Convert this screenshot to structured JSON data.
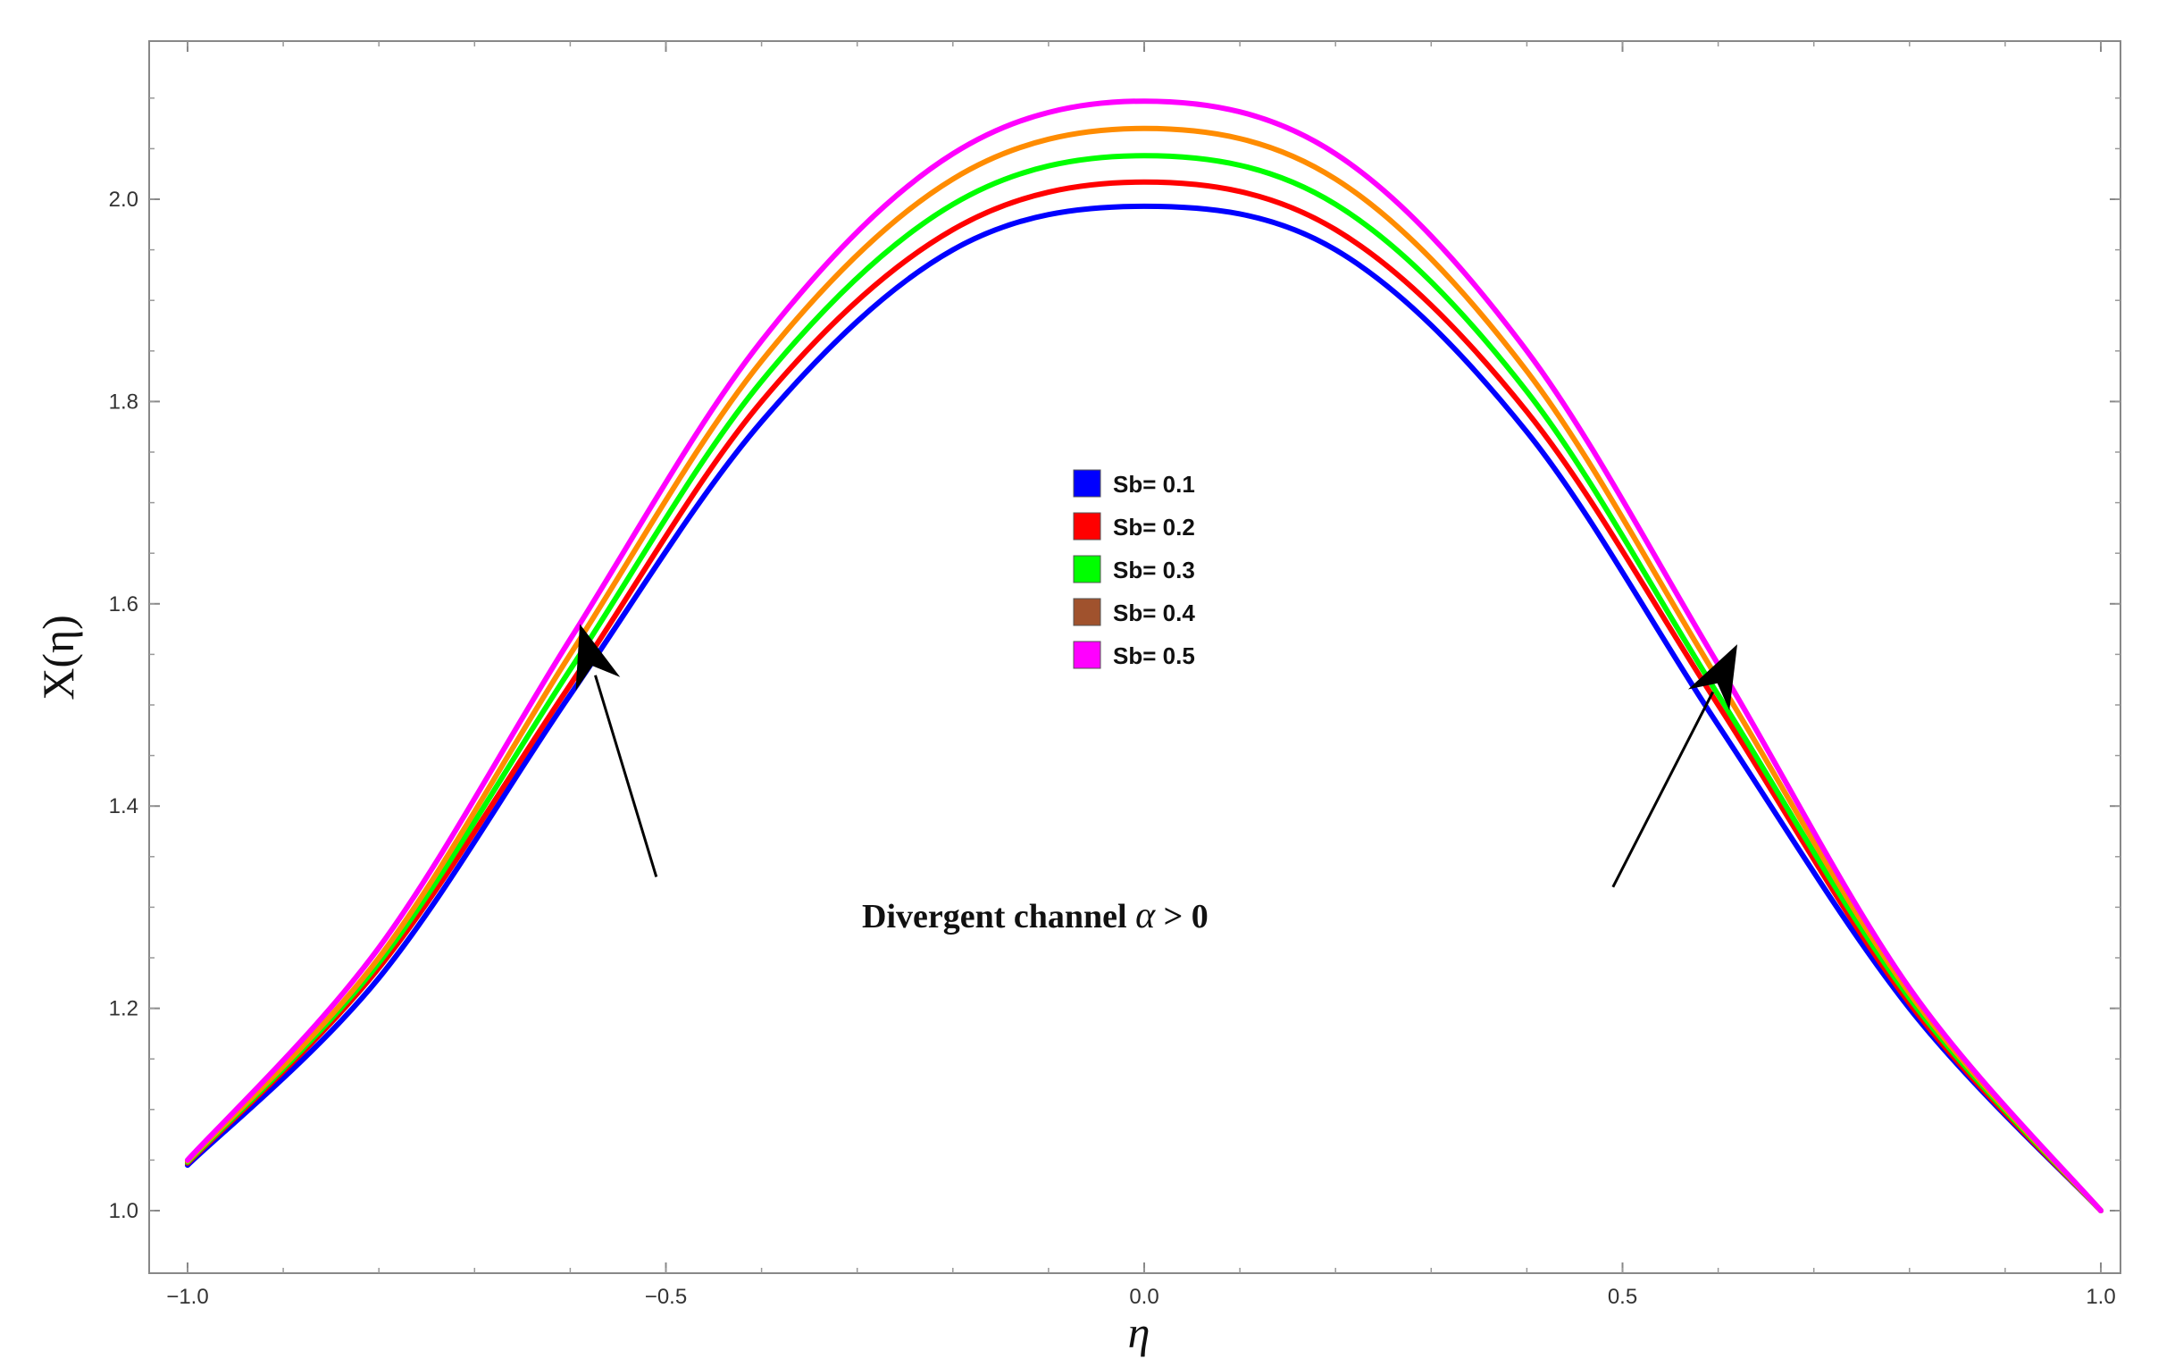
{
  "chart_data": {
    "type": "line",
    "xlabel": "η",
    "ylabel": "X(η)",
    "xlim": [
      -1.0,
      1.0
    ],
    "ylim": [
      0.95,
      2.14
    ],
    "xticks": [
      -1.0,
      -0.5,
      0.0,
      0.5,
      1.0
    ],
    "yticks": [
      1.0,
      1.2,
      1.4,
      1.6,
      1.8,
      2.0
    ],
    "xtick_labels": [
      "−1.0",
      "−0.5",
      "0.0",
      "0.5",
      "1.0"
    ],
    "ytick_labels": [
      "1.0",
      "1.2",
      "1.4",
      "1.6",
      "1.8",
      "2.0"
    ],
    "grid": false,
    "legend_position": "center",
    "series": [
      {
        "name": "Sb= 0.1",
        "color": "#0000ff",
        "x": [
          -1.0,
          -0.8,
          -0.6,
          -0.4,
          -0.2,
          0.0,
          0.2,
          0.4,
          0.6,
          0.8,
          1.0
        ],
        "y": [
          1.045,
          1.23,
          1.51,
          1.78,
          1.95,
          1.993,
          1.95,
          1.77,
          1.48,
          1.2,
          1.0
        ]
      },
      {
        "name": "Sb= 0.2",
        "color": "#ff0000",
        "x": [
          -1.0,
          -0.8,
          -0.6,
          -0.4,
          -0.2,
          0.0,
          0.2,
          0.4,
          0.6,
          0.8,
          1.0
        ],
        "y": [
          1.047,
          1.24,
          1.52,
          1.8,
          1.97,
          2.017,
          1.97,
          1.79,
          1.5,
          1.205,
          1.0
        ]
      },
      {
        "name": "Sb= 0.3",
        "color": "#00ff00",
        "x": [
          -1.0,
          -0.8,
          -0.6,
          -0.4,
          -0.2,
          0.0,
          0.2,
          0.4,
          0.6,
          0.8,
          1.0
        ],
        "y": [
          1.048,
          1.245,
          1.535,
          1.82,
          1.995,
          2.043,
          1.995,
          1.81,
          1.51,
          1.21,
          1.0
        ]
      },
      {
        "name": "Sb= 0.4",
        "color": "#ff8c00",
        "x": [
          -1.0,
          -0.8,
          -0.6,
          -0.4,
          -0.2,
          0.0,
          0.2,
          0.4,
          0.6,
          0.8,
          1.0
        ],
        "y": [
          1.049,
          1.25,
          1.55,
          1.84,
          2.02,
          2.07,
          2.02,
          1.83,
          1.525,
          1.215,
          1.0
        ]
      },
      {
        "name": "Sb= 0.5",
        "color": "#ff00ff",
        "x": [
          -1.0,
          -0.8,
          -0.6,
          -0.4,
          -0.2,
          0.0,
          0.2,
          0.4,
          0.6,
          0.8,
          1.0
        ],
        "y": [
          1.05,
          1.26,
          1.565,
          1.86,
          2.045,
          2.097,
          2.045,
          1.85,
          1.54,
          1.22,
          1.0
        ]
      }
    ],
    "legend_swatch_colors": [
      "#0000ff",
      "#ff0000",
      "#00ff00",
      "#a0522d",
      "#ff00ff"
    ],
    "annotation": {
      "text_main": "Divergent channel ",
      "text_symbol": "α",
      "text_rest": "  >  0",
      "arrows": [
        {
          "from": [
            -0.51,
            1.33
          ],
          "to": [
            -0.59,
            1.58
          ]
        },
        {
          "from": [
            0.49,
            1.32
          ],
          "to": [
            0.62,
            1.56
          ]
        }
      ]
    }
  }
}
